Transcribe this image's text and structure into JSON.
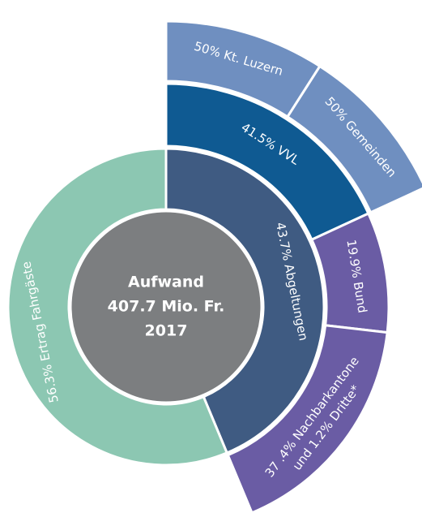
{
  "chart_data": {
    "type": "sunburst",
    "center_labels": [
      "Aufwand",
      "407.7 Mio. Fr.",
      "2017"
    ],
    "center_color": "#7c7e80",
    "inner": [
      {
        "label": "43.7% Abgeltungen",
        "value": 43.7,
        "color": "#3f5b82"
      },
      {
        "label": "56.3% Ertrag Fahrgäste",
        "value": 56.3,
        "color": "#8cc7b2"
      }
    ],
    "middle": [
      {
        "label": "41.5% VVL",
        "value": 41.5,
        "color": "#0f5a92"
      },
      {
        "label": "19.9% Bund",
        "value": 19.9,
        "color": "#6a5ca4"
      },
      {
        "labels": [
          "37 .4% Nachbarkantone",
          "und 1.2% Dritte*"
        ],
        "values": [
          37.4,
          1.2
        ],
        "color": "#6a5ca4"
      }
    ],
    "outer": [
      {
        "label": "50% Kt. Luzern",
        "value": 50,
        "color": "#6f8fc0"
      },
      {
        "label": "50% Gemeinden",
        "value": 50,
        "color": "#6f8fc0"
      }
    ]
  }
}
